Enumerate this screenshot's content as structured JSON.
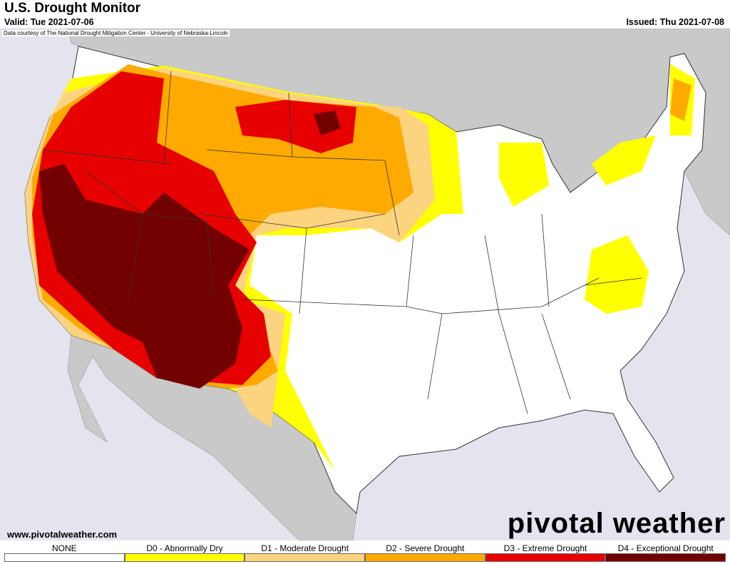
{
  "header": {
    "title": "U.S. Drought Monitor",
    "valid": "Valid: Tue 2021-07-06",
    "issued": "Issued: Thu 2021-07-08",
    "credit": "Data courtesy of The National Drought Mitigation Center - University of Nebraska-Lincoln"
  },
  "footer": {
    "url": "www.pivotalweather.com",
    "brand": "pivotal weather"
  },
  "legend": {
    "items": [
      {
        "label": "NONE",
        "color": "#ffffff"
      },
      {
        "label": "D0 - Abnormally Dry",
        "color": "#ffff00"
      },
      {
        "label": "D1 - Moderate Drought",
        "color": "#fcd37f"
      },
      {
        "label": "D2 - Severe Drought",
        "color": "#ffaa00"
      },
      {
        "label": "D3 - Extreme Drought",
        "color": "#e60000"
      },
      {
        "label": "D4 - Exceptional Drought",
        "color": "#730000"
      }
    ]
  }
}
